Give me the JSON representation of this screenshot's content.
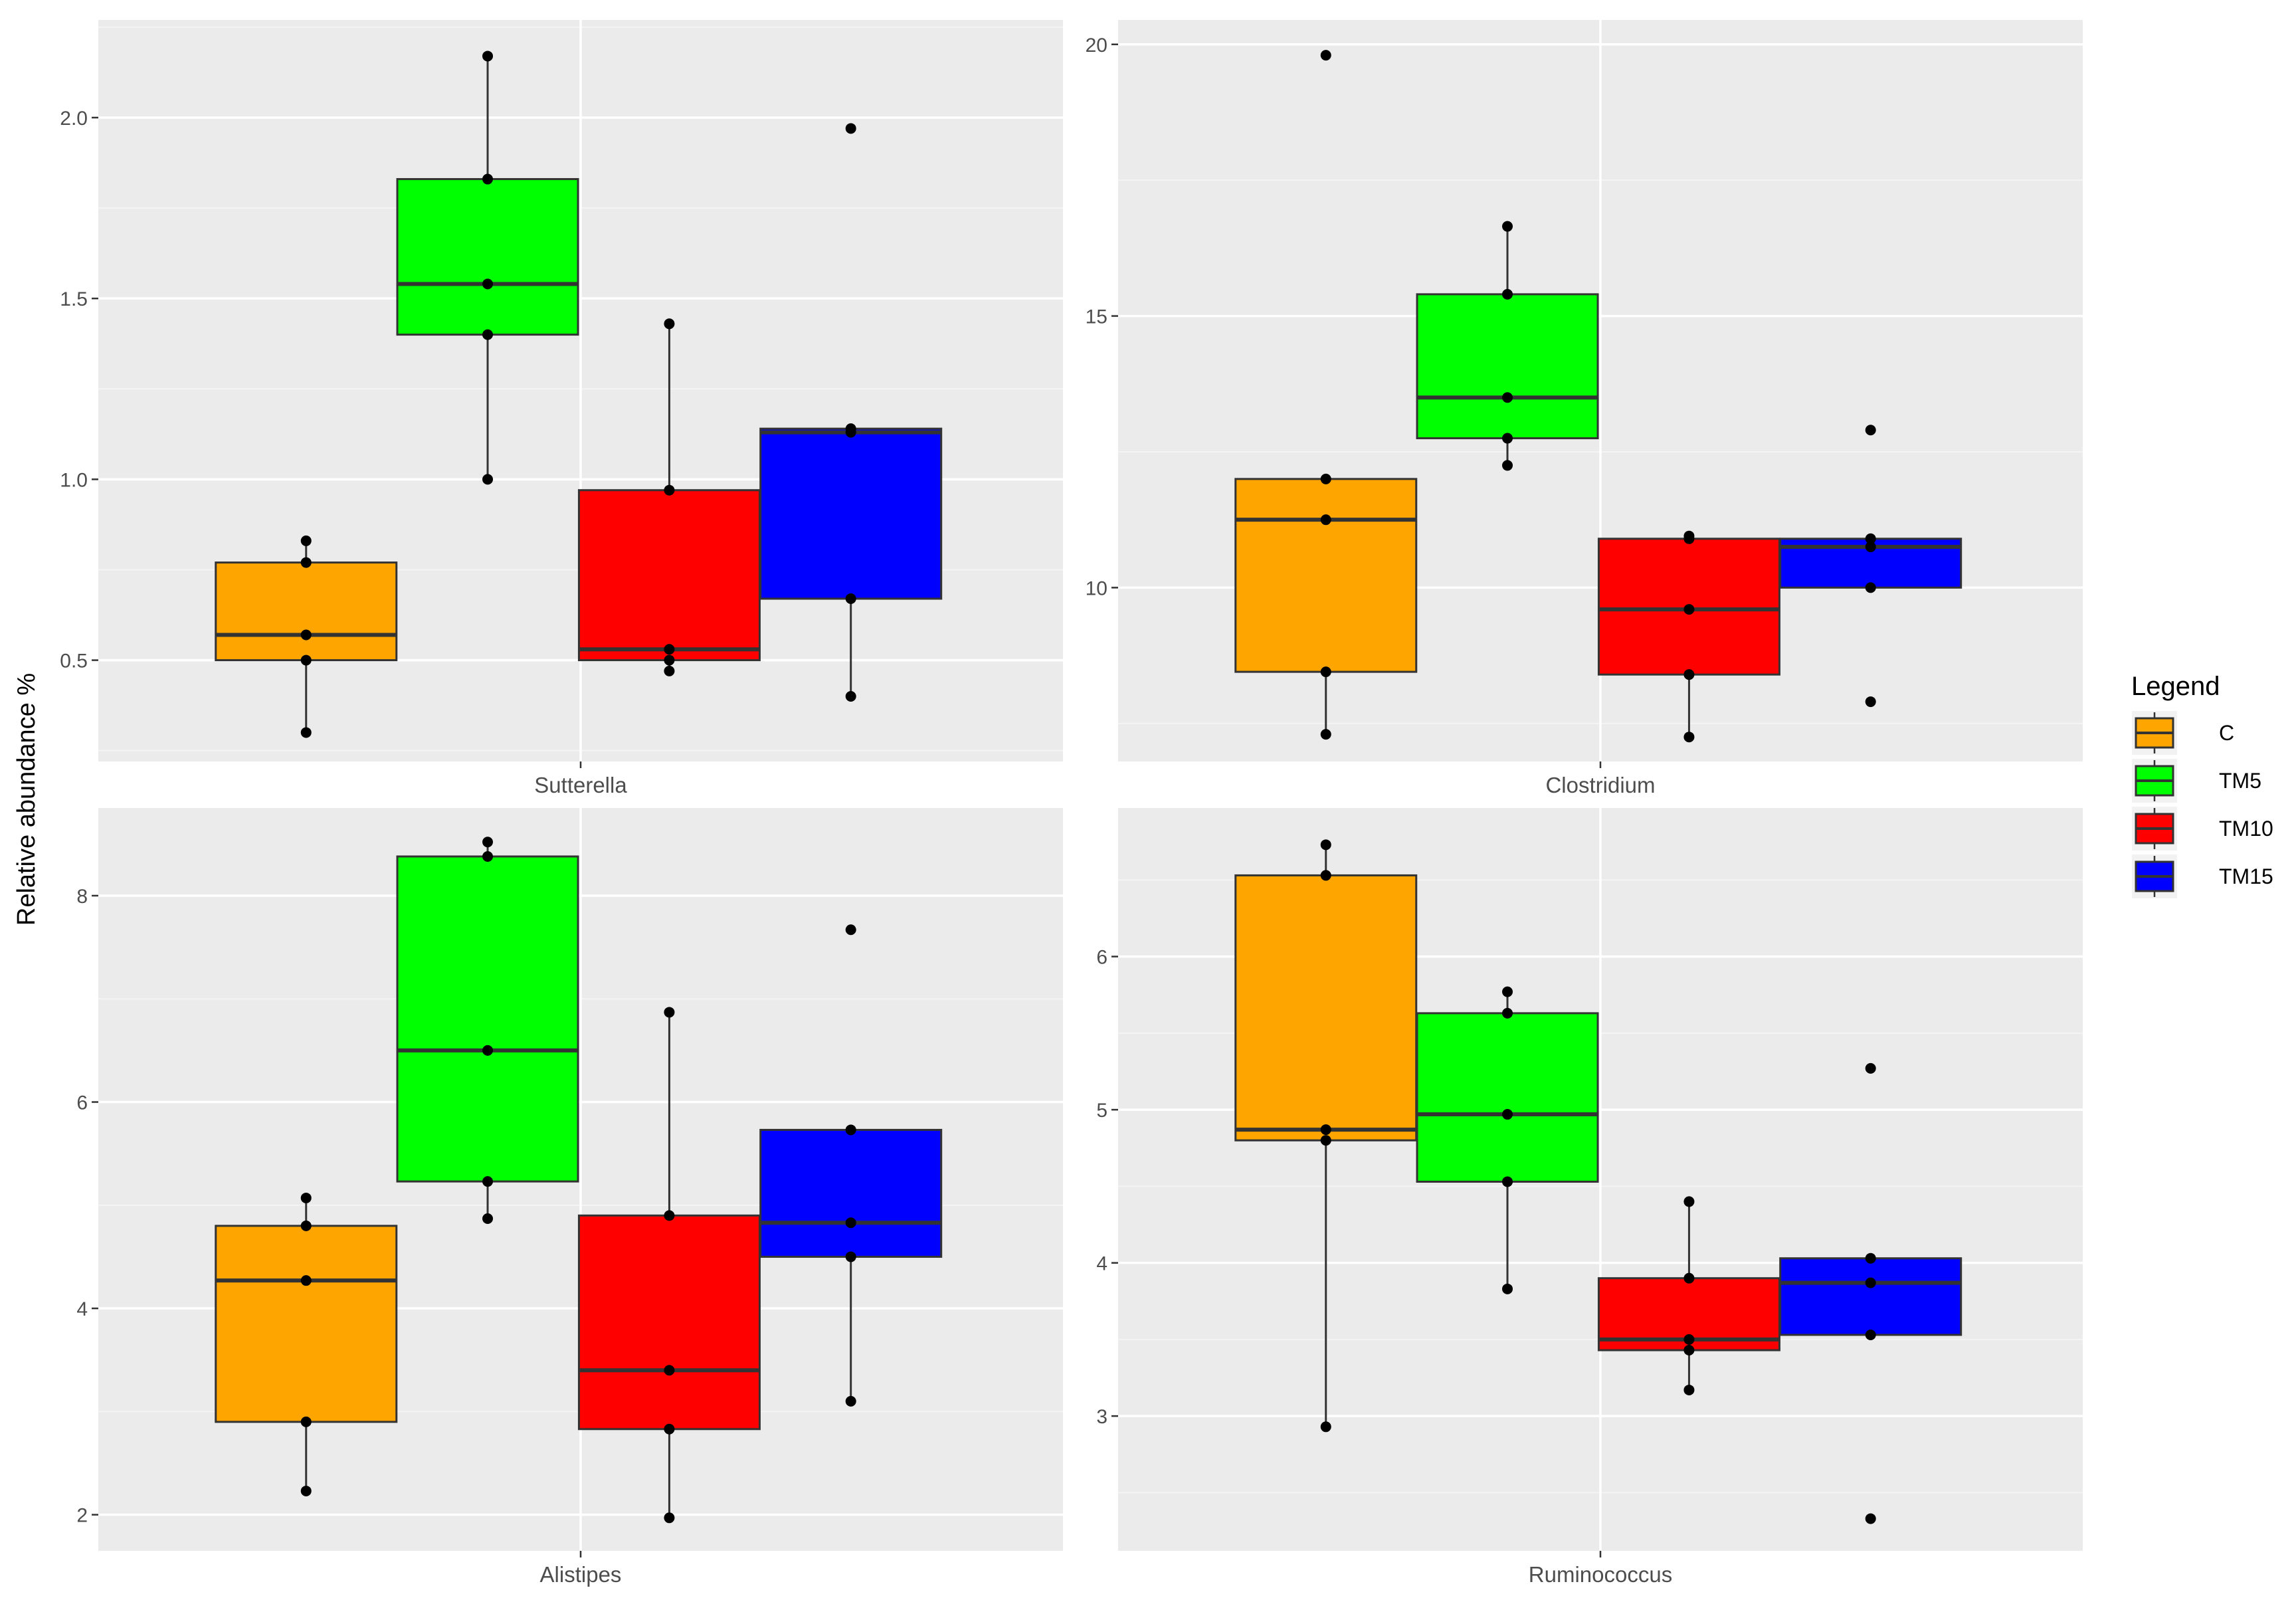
{
  "chart_data": {
    "type": "box",
    "ylabel": "Relative abundance %",
    "groups": [
      "C",
      "TM5",
      "TM10",
      "TM15"
    ],
    "colors": {
      "C": "#FFA500",
      "TM5": "#00FF00",
      "TM10": "#FF0000",
      "TM15": "#0000FF"
    },
    "legend": {
      "title": "Legend",
      "position": "right",
      "entries": [
        "C",
        "TM5",
        "TM10",
        "TM15"
      ]
    },
    "panels": [
      {
        "name": "Sutterella",
        "ylim": [
          0.22,
          2.27
        ],
        "yticks": [
          0.5,
          1.0,
          1.5,
          2.0
        ],
        "ytick_labels": [
          "0.5",
          "1.0",
          "1.5",
          "2.0"
        ],
        "minor_ticks": [
          0.25,
          0.75,
          1.25,
          1.75,
          2.25
        ],
        "boxes": [
          {
            "group": "C",
            "q1": 0.5,
            "median": 0.57,
            "q3": 0.77,
            "whisker_low": 0.3,
            "whisker_high": 0.83,
            "points": [
              0.3,
              0.5,
              0.57,
              0.77,
              0.83
            ]
          },
          {
            "group": "TM5",
            "q1": 1.4,
            "median": 1.54,
            "q3": 1.83,
            "whisker_low": 1.0,
            "whisker_high": 2.17,
            "points": [
              1.0,
              1.4,
              1.54,
              1.83,
              2.17
            ]
          },
          {
            "group": "TM10",
            "q1": 0.5,
            "median": 0.53,
            "q3": 0.97,
            "whisker_low": 0.47,
            "whisker_high": 1.43,
            "points": [
              0.47,
              0.5,
              0.53,
              0.97,
              1.43
            ]
          },
          {
            "group": "TM15",
            "q1": 0.67,
            "median": 1.13,
            "q3": 1.14,
            "whisker_low": 0.4,
            "whisker_high": 1.14,
            "points": [
              0.4,
              0.67,
              1.13,
              1.14,
              1.97
            ]
          }
        ]
      },
      {
        "name": "Clostridium",
        "ylim": [
          6.8,
          20.45
        ],
        "yticks": [
          10,
          15,
          20
        ],
        "ytick_labels": [
          "10",
          "15",
          "20"
        ],
        "minor_ticks": [
          7.5,
          12.5,
          17.5
        ],
        "boxes": [
          {
            "group": "C",
            "q1": 8.45,
            "median": 11.25,
            "q3": 12.0,
            "whisker_low": 7.3,
            "whisker_high": 12.0,
            "points": [
              7.3,
              8.45,
              11.25,
              12.0,
              19.8
            ]
          },
          {
            "group": "TM5",
            "q1": 12.75,
            "median": 13.5,
            "q3": 15.4,
            "whisker_low": 12.25,
            "whisker_high": 16.65,
            "points": [
              12.25,
              12.75,
              13.5,
              15.4,
              16.65
            ]
          },
          {
            "group": "TM10",
            "q1": 8.4,
            "median": 9.6,
            "q3": 10.9,
            "whisker_low": 7.25,
            "whisker_high": 10.95,
            "points": [
              7.25,
              8.4,
              9.6,
              10.9,
              10.95
            ]
          },
          {
            "group": "TM15",
            "q1": 10.0,
            "median": 10.75,
            "q3": 10.9,
            "whisker_low": 10.0,
            "whisker_high": 10.9,
            "points": [
              7.9,
              10.0,
              10.75,
              10.9,
              12.9
            ]
          }
        ]
      },
      {
        "name": "Alistipes",
        "ylim": [
          1.65,
          8.85
        ],
        "yticks": [
          2,
          4,
          6,
          8
        ],
        "ytick_labels": [
          "2",
          "4",
          "6",
          "8"
        ],
        "minor_ticks": [
          3,
          5,
          7
        ],
        "boxes": [
          {
            "group": "C",
            "q1": 2.9,
            "median": 4.27,
            "q3": 4.8,
            "whisker_low": 2.23,
            "whisker_high": 5.07,
            "points": [
              2.23,
              2.9,
              4.27,
              4.8,
              5.07
            ]
          },
          {
            "group": "TM5",
            "q1": 5.23,
            "median": 6.5,
            "q3": 8.38,
            "whisker_low": 4.87,
            "whisker_high": 8.52,
            "points": [
              4.87,
              5.23,
              6.5,
              8.38,
              8.52
            ]
          },
          {
            "group": "TM10",
            "q1": 2.83,
            "median": 3.4,
            "q3": 4.9,
            "whisker_low": 1.97,
            "whisker_high": 6.87,
            "points": [
              1.97,
              2.83,
              3.4,
              4.9,
              6.87
            ]
          },
          {
            "group": "TM15",
            "q1": 4.5,
            "median": 4.83,
            "q3": 5.73,
            "whisker_low": 3.1,
            "whisker_high": 5.73,
            "points": [
              3.1,
              4.5,
              4.83,
              5.73,
              7.67
            ]
          }
        ]
      },
      {
        "name": "Ruminococcus",
        "ylim": [
          2.12,
          6.97
        ],
        "yticks": [
          3,
          4,
          5,
          6
        ],
        "ytick_labels": [
          "3",
          "4",
          "5",
          "6"
        ],
        "minor_ticks": [
          2.5,
          3.5,
          4.5,
          5.5,
          6.5
        ],
        "boxes": [
          {
            "group": "C",
            "q1": 4.8,
            "median": 4.87,
            "q3": 6.53,
            "whisker_low": 2.93,
            "whisker_high": 6.73,
            "points": [
              2.93,
              4.8,
              4.87,
              6.53,
              6.73
            ]
          },
          {
            "group": "TM5",
            "q1": 4.53,
            "median": 4.97,
            "q3": 5.63,
            "whisker_low": 3.83,
            "whisker_high": 5.77,
            "points": [
              3.83,
              4.53,
              4.97,
              5.63,
              5.77
            ]
          },
          {
            "group": "TM10",
            "q1": 3.43,
            "median": 3.5,
            "q3": 3.9,
            "whisker_low": 3.17,
            "whisker_high": 4.4,
            "points": [
              3.17,
              3.43,
              3.5,
              3.9,
              4.4
            ]
          },
          {
            "group": "TM15",
            "q1": 3.53,
            "median": 3.87,
            "q3": 4.03,
            "whisker_low": 3.53,
            "whisker_high": 4.03,
            "points": [
              2.33,
              3.53,
              3.87,
              4.03,
              5.27
            ]
          }
        ]
      }
    ]
  }
}
